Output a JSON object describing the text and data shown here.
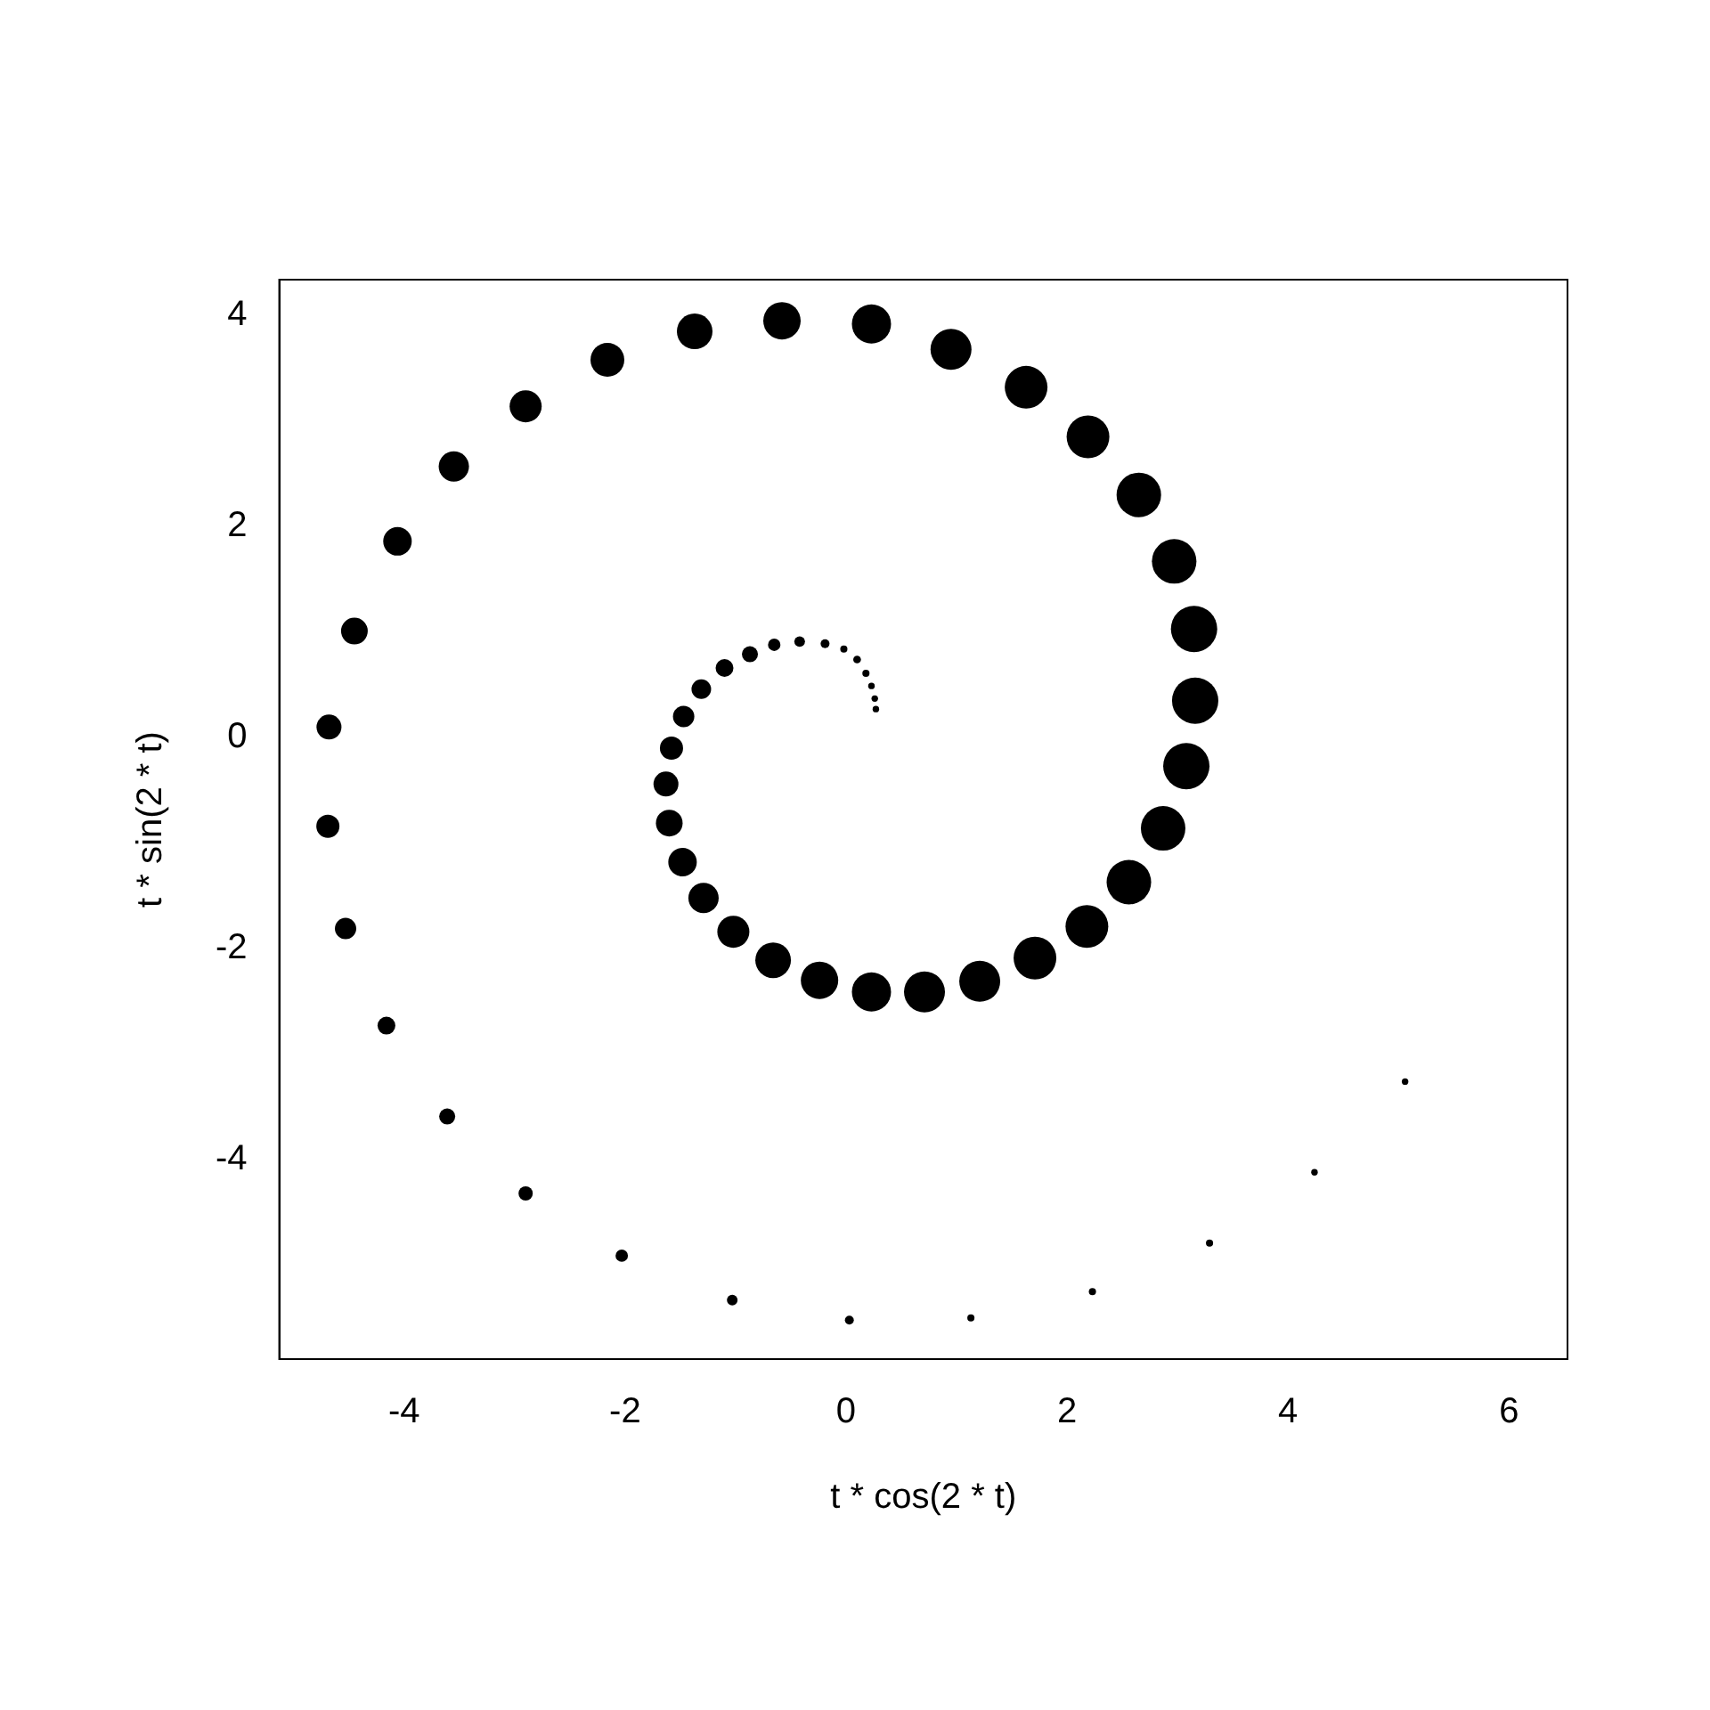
{
  "chart_data": {
    "type": "bubble",
    "xlabel": "t * cos(2 * t)",
    "ylabel": "t * sin(2 * t)",
    "xlim": [
      -5.13,
      6.53
    ],
    "ylim": [
      -5.89,
      4.34
    ],
    "xticks": [
      -4,
      -2,
      0,
      2,
      4,
      6
    ],
    "yticks": [
      -4,
      -2,
      0,
      2,
      4
    ],
    "x": [
      0.27,
      0.26,
      0.23,
      0.18,
      0.1,
      -0.02,
      -0.19,
      -0.42,
      -0.65,
      -0.87,
      -1.1,
      -1.31,
      -1.47,
      -1.58,
      -1.63,
      -1.6,
      -1.48,
      -1.29,
      -1.02,
      -0.66,
      -0.24,
      0.23,
      0.71,
      1.21,
      1.71,
      2.18,
      2.56,
      2.87,
      3.08,
      3.16,
      3.15,
      2.97,
      2.65,
      2.19,
      1.63,
      0.95,
      0.23,
      -0.58,
      -1.37,
      -2.16,
      -2.9,
      -3.55,
      -4.06,
      -4.45,
      -4.68,
      -4.69,
      -4.53,
      -4.16,
      -3.61,
      -2.9,
      -2.03,
      -1.03,
      0.03,
      1.13,
      2.23,
      3.29,
      4.24,
      5.06
    ],
    "values": [
      0.27,
      0.37,
      0.49,
      0.61,
      0.74,
      0.84,
      0.89,
      0.91,
      0.88,
      0.79,
      0.66,
      0.46,
      0.2,
      -0.1,
      -0.44,
      -0.81,
      -1.18,
      -1.52,
      -1.84,
      -2.11,
      -2.3,
      -2.41,
      -2.41,
      -2.31,
      -2.09,
      -1.79,
      -1.37,
      -0.86,
      -0.27,
      0.35,
      1.03,
      1.67,
      2.3,
      2.85,
      3.32,
      3.68,
      3.92,
      3.95,
      3.85,
      3.58,
      3.14,
      2.57,
      1.86,
      1.01,
      0.1,
      -0.84,
      -1.81,
      -2.73,
      -3.59,
      -4.32,
      -4.91,
      -5.33,
      -5.52,
      -5.5,
      -5.25,
      -4.79,
      -4.12,
      -3.26
    ],
    "sizes": [
      0.02,
      0.02,
      0.02,
      0.024,
      0.028,
      0.024,
      0.037,
      0.053,
      0.072,
      0.12,
      0.148,
      0.179,
      0.213,
      0.25,
      0.29,
      0.333,
      0.379,
      0.428,
      0.479,
      0.592,
      0.652,
      0.716,
      0.783,
      0.783,
      0.852,
      0.852,
      0.925,
      0.925,
      1,
      1,
      1,
      0.925,
      0.925,
      0.852,
      0.852,
      0.783,
      0.716,
      0.652,
      0.592,
      0.534,
      0.479,
      0.428,
      0.379,
      0.333,
      0.29,
      0.25,
      0.213,
      0.148,
      0.12,
      0.095,
      0.072,
      0.053,
      0.037,
      0.024,
      0.024,
      0.024,
      0.02,
      0.02
    ],
    "color": "#000000"
  }
}
